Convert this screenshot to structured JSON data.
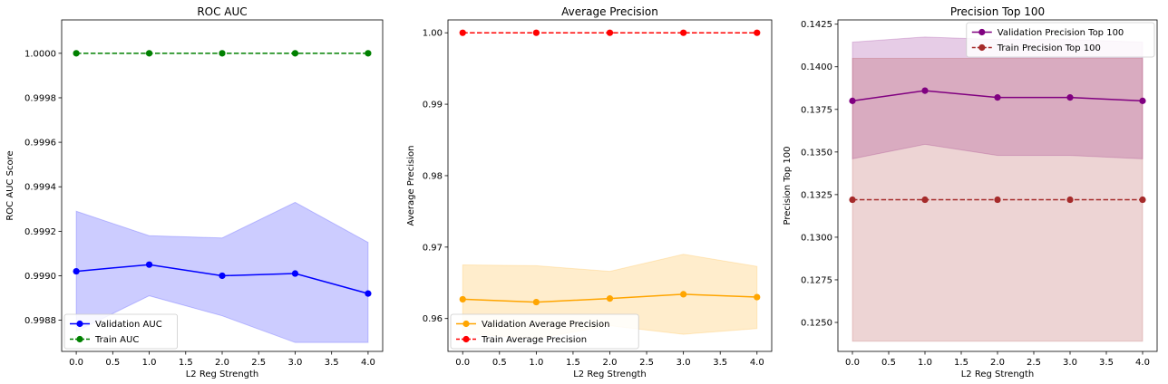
{
  "chart_data": [
    {
      "type": "line",
      "title": "ROC AUC",
      "xlabel": "L2 Reg Strength",
      "ylabel": "ROC AUC Score",
      "xlim": [
        -0.2,
        4.2
      ],
      "ylim": [
        0.99866,
        1.00015
      ],
      "xticks": [
        0.0,
        0.5,
        1.0,
        1.5,
        2.0,
        2.5,
        3.0,
        3.5,
        4.0
      ],
      "xtick_labels": [
        "0.0",
        "0.5",
        "1.0",
        "1.5",
        "2.0",
        "2.5",
        "3.0",
        "3.5",
        "4.0"
      ],
      "yticks": [
        0.9988,
        0.999,
        0.9992,
        0.9994,
        0.9996,
        0.9998,
        1.0
      ],
      "ytick_labels": [
        "0.9988",
        "0.9990",
        "0.9992",
        "0.9994",
        "0.9996",
        "0.9998",
        "1.0000"
      ],
      "legend_position": "lower-left",
      "x": [
        0,
        1,
        2,
        3,
        4
      ],
      "series": [
        {
          "name": "Validation AUC",
          "color": "#0000ff",
          "dashed": false,
          "values": [
            0.99902,
            0.99905,
            0.999,
            0.99901,
            0.99892
          ],
          "band_upper": [
            0.99929,
            0.99918,
            0.99917,
            0.99933,
            0.99915
          ],
          "band_lower": [
            0.99875,
            0.99891,
            0.99882,
            0.9987,
            0.9987
          ],
          "band_color": "#0000ff"
        },
        {
          "name": "Train AUC",
          "color": "#008000",
          "dashed": true,
          "values": [
            1.0,
            1.0,
            1.0,
            1.0,
            1.0
          ]
        }
      ]
    },
    {
      "type": "line",
      "title": "Average Precision",
      "xlabel": "L2 Reg Strength",
      "ylabel": "Average Precision",
      "xlim": [
        -0.2,
        4.2
      ],
      "ylim": [
        0.9554,
        1.0018
      ],
      "xticks": [
        0.0,
        0.5,
        1.0,
        1.5,
        2.0,
        2.5,
        3.0,
        3.5,
        4.0
      ],
      "xtick_labels": [
        "0.0",
        "0.5",
        "1.0",
        "1.5",
        "2.0",
        "2.5",
        "3.0",
        "3.5",
        "4.0"
      ],
      "yticks": [
        0.96,
        0.97,
        0.98,
        0.99,
        1.0
      ],
      "ytick_labels": [
        "0.96",
        "0.97",
        "0.98",
        "0.99",
        "1.00"
      ],
      "legend_position": "lower-left",
      "x": [
        0,
        1,
        2,
        3,
        4
      ],
      "series": [
        {
          "name": "Validation Average Precision",
          "color": "#ffa500",
          "dashed": false,
          "values": [
            0.9627,
            0.9623,
            0.9628,
            0.9634,
            0.963
          ],
          "band_upper": [
            0.9675,
            0.9674,
            0.9666,
            0.969,
            0.9673
          ],
          "band_lower": [
            0.9579,
            0.9572,
            0.959,
            0.9578,
            0.9586
          ],
          "band_color": "#ffa500"
        },
        {
          "name": "Train Average Precision",
          "color": "#ff0000",
          "dashed": true,
          "values": [
            1.0,
            1.0,
            1.0,
            1.0,
            1.0
          ]
        }
      ]
    },
    {
      "type": "line",
      "title": "Precision Top 100",
      "xlabel": "L2 Reg Strength",
      "ylabel": "Precision Top 100",
      "xlim": [
        -0.2,
        4.2
      ],
      "ylim": [
        0.1233,
        0.14275
      ],
      "xticks": [
        0.0,
        0.5,
        1.0,
        1.5,
        2.0,
        2.5,
        3.0,
        3.5,
        4.0
      ],
      "xtick_labels": [
        "0.0",
        "0.5",
        "1.0",
        "1.5",
        "2.0",
        "2.5",
        "3.0",
        "3.5",
        "4.0"
      ],
      "yticks": [
        0.125,
        0.1275,
        0.13,
        0.1325,
        0.135,
        0.1375,
        0.14,
        0.1425
      ],
      "ytick_labels": [
        "0.1250",
        "0.1275",
        "0.1300",
        "0.1325",
        "0.1350",
        "0.1375",
        "0.1400",
        "0.1425"
      ],
      "legend_position": "upper-right",
      "x": [
        0,
        1,
        2,
        3,
        4
      ],
      "series": [
        {
          "name": "Validation Precision Top 100",
          "color": "#800080",
          "dashed": false,
          "values": [
            0.138,
            0.1386,
            0.1382,
            0.1382,
            0.138
          ],
          "band_upper": [
            0.14145,
            0.14175,
            0.1416,
            0.1416,
            0.14145
          ],
          "band_lower": [
            0.1346,
            0.13545,
            0.1348,
            0.1348,
            0.1346
          ],
          "band_color": "#800080"
        },
        {
          "name": "Train Precision Top 100",
          "color": "#a52a2a",
          "dashed": true,
          "values": [
            0.1322,
            0.1322,
            0.1322,
            0.1322,
            0.1322
          ],
          "band_upper": [
            0.1405,
            0.1405,
            0.1405,
            0.1405,
            0.1405
          ],
          "band_lower": [
            0.1239,
            0.1239,
            0.1239,
            0.1239,
            0.1239
          ],
          "band_color": "#a52a2a"
        }
      ]
    }
  ]
}
